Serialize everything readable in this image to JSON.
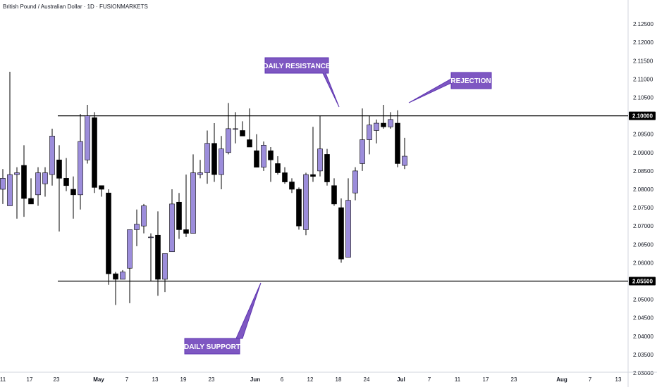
{
  "header": {
    "title": "British Pound / Australian Dollar · 1D · FUSIONMARKETS"
  },
  "chart_data": {
    "type": "candlestick",
    "title": "British Pound / Australian Dollar · 1D · FUSIONMARKETS",
    "ylim": [
      2.03,
      2.13
    ],
    "y_ticks": [
      "2.12500",
      "2.12000",
      "2.11500",
      "2.11000",
      "2.10500",
      "2.10000",
      "2.09500",
      "2.09000",
      "2.08500",
      "2.08000",
      "2.07500",
      "2.07000",
      "2.06500",
      "2.06000",
      "2.05500",
      "2.05000",
      "2.04500",
      "2.04000",
      "2.03500",
      "2.03000"
    ],
    "x_ticks": [
      {
        "label": "11",
        "x": 4
      },
      {
        "label": "17",
        "x": 42
      },
      {
        "label": "23",
        "x": 80
      },
      {
        "label": "May",
        "x": 140,
        "major": true
      },
      {
        "label": "7",
        "x": 180
      },
      {
        "label": "13",
        "x": 220
      },
      {
        "label": "19",
        "x": 260
      },
      {
        "label": "23",
        "x": 300
      },
      {
        "label": "Jun",
        "x": 362,
        "major": true
      },
      {
        "label": "6",
        "x": 400
      },
      {
        "label": "12",
        "x": 440
      },
      {
        "label": "18",
        "x": 480
      },
      {
        "label": "24",
        "x": 520
      },
      {
        "label": "Jul",
        "x": 569,
        "major": true
      },
      {
        "label": "7",
        "x": 609
      },
      {
        "label": "11",
        "x": 649
      },
      {
        "label": "17",
        "x": 689
      },
      {
        "label": "23",
        "x": 729
      },
      {
        "label": "Aug",
        "x": 797,
        "major": true
      },
      {
        "label": "7",
        "x": 837
      },
      {
        "label": "13",
        "x": 877
      }
    ],
    "colors": {
      "up": "#9c8ddb",
      "down": "#000000",
      "callout": "#7e57c2"
    },
    "candles": [
      {
        "o": 2.08,
        "h": 2.0855,
        "l": 2.076,
        "c": 2.083
      },
      {
        "o": 2.0755,
        "h": 2.112,
        "l": 2.0755,
        "c": 2.084
      },
      {
        "o": 2.084,
        "h": 2.086,
        "l": 2.072,
        "c": 2.0845
      },
      {
        "o": 2.0865,
        "h": 2.092,
        "l": 2.0725,
        "c": 2.0775
      },
      {
        "o": 2.0775,
        "h": 2.083,
        "l": 2.076,
        "c": 2.076
      },
      {
        "o": 2.0785,
        "h": 2.086,
        "l": 2.0755,
        "c": 2.0845
      },
      {
        "o": 2.0815,
        "h": 2.086,
        "l": 2.078,
        "c": 2.0845
      },
      {
        "o": 2.084,
        "h": 2.0965,
        "l": 2.081,
        "c": 2.0945
      },
      {
        "o": 2.088,
        "h": 2.092,
        "l": 2.0685,
        "c": 2.083
      },
      {
        "o": 2.083,
        "h": 2.0885,
        "l": 2.0795,
        "c": 2.081
      },
      {
        "o": 2.08,
        "h": 2.0835,
        "l": 2.072,
        "c": 2.0785
      },
      {
        "o": 2.0785,
        "h": 2.1005,
        "l": 2.0745,
        "c": 2.093
      },
      {
        "o": 2.088,
        "h": 2.103,
        "l": 2.087,
        "c": 2.1
      },
      {
        "o": 2.0995,
        "h": 2.101,
        "l": 2.079,
        "c": 2.0805
      },
      {
        "o": 2.081,
        "h": 2.081,
        "l": 2.078,
        "c": 2.08
      },
      {
        "o": 2.079,
        "h": 2.08,
        "l": 2.054,
        "c": 2.057
      },
      {
        "o": 2.057,
        "h": 2.0575,
        "l": 2.0485,
        "c": 2.0555
      },
      {
        "o": 2.0555,
        "h": 2.058,
        "l": 2.0555,
        "c": 2.0575
      },
      {
        "o": 2.0585,
        "h": 2.069,
        "l": 2.049,
        "c": 2.069
      },
      {
        "o": 2.069,
        "h": 2.0745,
        "l": 2.0645,
        "c": 2.0705
      },
      {
        "o": 2.07,
        "h": 2.076,
        "l": 2.068,
        "c": 2.0755
      },
      {
        "o": 2.067,
        "h": 2.068,
        "l": 2.055,
        "c": 2.067
      },
      {
        "o": 2.0675,
        "h": 2.074,
        "l": 2.051,
        "c": 2.0555
      },
      {
        "o": 2.0555,
        "h": 2.062,
        "l": 2.052,
        "c": 2.0625
      },
      {
        "o": 2.063,
        "h": 2.08,
        "l": 2.063,
        "c": 2.076
      },
      {
        "o": 2.0765,
        "h": 2.079,
        "l": 2.0665,
        "c": 2.069
      },
      {
        "o": 2.069,
        "h": 2.084,
        "l": 2.067,
        "c": 2.068
      },
      {
        "o": 2.068,
        "h": 2.0895,
        "l": 2.068,
        "c": 2.0845
      },
      {
        "o": 2.084,
        "h": 2.088,
        "l": 2.083,
        "c": 2.0845
      },
      {
        "o": 2.0845,
        "h": 2.096,
        "l": 2.0815,
        "c": 2.0925
      },
      {
        "o": 2.0925,
        "h": 2.098,
        "l": 2.082,
        "c": 2.084
      },
      {
        "o": 2.084,
        "h": 2.0945,
        "l": 2.08,
        "c": 2.091
      },
      {
        "o": 2.09,
        "h": 2.1035,
        "l": 2.0895,
        "c": 2.0965
      },
      {
        "o": 2.0965,
        "h": 2.101,
        "l": 2.0925,
        "c": 2.0965
      },
      {
        "o": 2.096,
        "h": 2.0985,
        "l": 2.0945,
        "c": 2.0945
      },
      {
        "o": 2.0935,
        "h": 2.102,
        "l": 2.092,
        "c": 2.0915
      },
      {
        "o": 2.0905,
        "h": 2.095,
        "l": 2.086,
        "c": 2.086
      },
      {
        "o": 2.086,
        "h": 2.093,
        "l": 2.085,
        "c": 2.092
      },
      {
        "o": 2.0905,
        "h": 2.0915,
        "l": 2.082,
        "c": 2.088
      },
      {
        "o": 2.087,
        "h": 2.089,
        "l": 2.084,
        "c": 2.0845
      },
      {
        "o": 2.0845,
        "h": 2.086,
        "l": 2.0815,
        "c": 2.082
      },
      {
        "o": 2.082,
        "h": 2.083,
        "l": 2.079,
        "c": 2.08
      },
      {
        "o": 2.08,
        "h": 2.0805,
        "l": 2.069,
        "c": 2.07
      },
      {
        "o": 2.069,
        "h": 2.0845,
        "l": 2.0675,
        "c": 2.084
      },
      {
        "o": 2.084,
        "h": 2.097,
        "l": 2.082,
        "c": 2.0835
      },
      {
        "o": 2.085,
        "h": 2.1,
        "l": 2.0835,
        "c": 2.091
      },
      {
        "o": 2.0895,
        "h": 2.091,
        "l": 2.081,
        "c": 2.082
      },
      {
        "o": 2.081,
        "h": 2.083,
        "l": 2.0755,
        "c": 2.076
      },
      {
        "o": 2.075,
        "h": 2.0775,
        "l": 2.06,
        "c": 2.061
      },
      {
        "o": 2.0615,
        "h": 2.083,
        "l": 2.0615,
        "c": 2.077
      },
      {
        "o": 2.079,
        "h": 2.086,
        "l": 2.077,
        "c": 2.085
      },
      {
        "o": 2.087,
        "h": 2.102,
        "l": 2.085,
        "c": 2.0935
      },
      {
        "o": 2.0935,
        "h": 2.1,
        "l": 2.0895,
        "c": 2.0975
      },
      {
        "o": 2.096,
        "h": 2.099,
        "l": 2.0925,
        "c": 2.098
      },
      {
        "o": 2.098,
        "h": 2.103,
        "l": 2.0965,
        "c": 2.097
      },
      {
        "o": 2.097,
        "h": 2.101,
        "l": 2.0965,
        "c": 2.099
      },
      {
        "o": 2.098,
        "h": 2.1015,
        "l": 2.086,
        "c": 2.087
      },
      {
        "o": 2.0865,
        "h": 2.094,
        "l": 2.0855,
        "c": 2.089
      }
    ],
    "levels": [
      {
        "value": 2.1,
        "label": "2.10000"
      },
      {
        "value": 2.055,
        "label": "2.05500"
      }
    ],
    "annotations": [
      {
        "text": "DAILY RESISTANCE"
      },
      {
        "text": "REJECTION"
      },
      {
        "text": "DAILY SUPPORT"
      }
    ]
  }
}
